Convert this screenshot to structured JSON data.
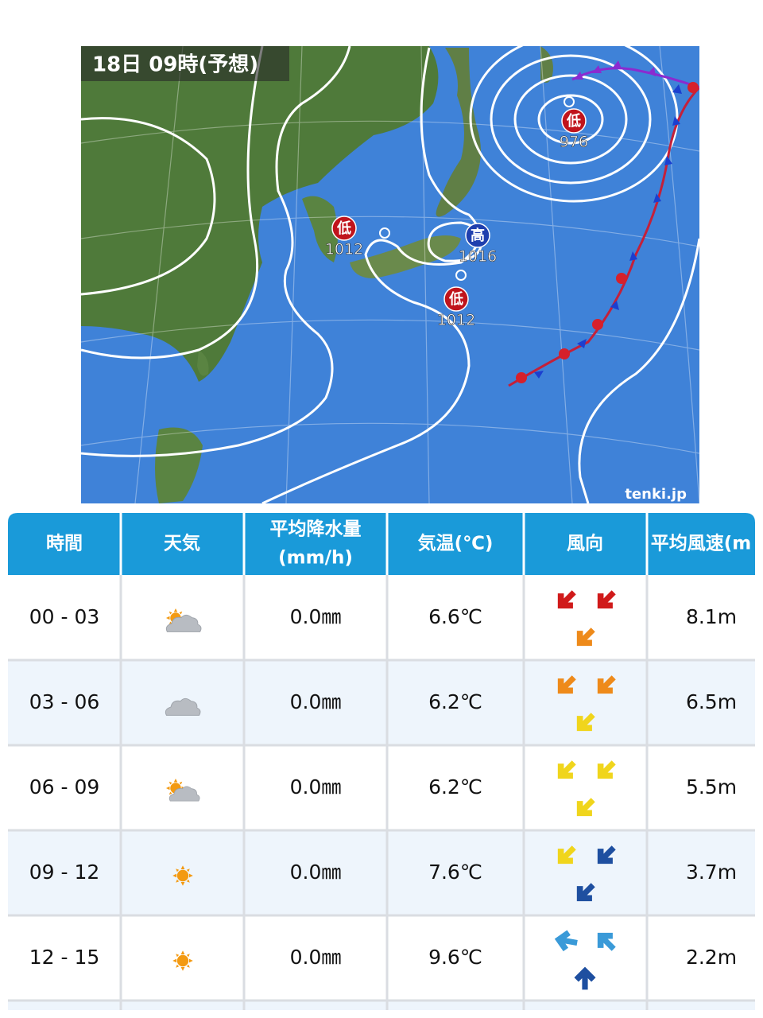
{
  "map": {
    "title": "18日 09時(予想)",
    "pressure_systems": [
      {
        "kind": "低",
        "pressure": "976"
      },
      {
        "kind": "低",
        "pressure": "1012"
      },
      {
        "kind": "高",
        "pressure": "1016"
      },
      {
        "kind": "低",
        "pressure": "1012"
      }
    ],
    "credit": "tenki.jp"
  },
  "table": {
    "headers": [
      [
        "時間"
      ],
      [
        "天気"
      ],
      [
        "平均降水量",
        "(mm/h)"
      ],
      [
        "気温(℃)"
      ],
      [
        "風向"
      ],
      [
        "平均風速(m"
      ]
    ],
    "rows": [
      {
        "time": "00 - 03",
        "precipitation": "0.0㎜",
        "temperature": "6.6℃",
        "wind_speed": "8.1m"
      },
      {
        "time": "03 - 06",
        "precipitation": "0.0㎜",
        "temperature": "6.2℃",
        "wind_speed": "6.5m"
      },
      {
        "time": "06 - 09",
        "precipitation": "0.0㎜",
        "temperature": "6.2℃",
        "wind_speed": "5.5m"
      },
      {
        "time": "09 - 12",
        "precipitation": "0.0㎜",
        "temperature": "7.6℃",
        "wind_speed": "3.7m"
      },
      {
        "time": "12 - 15",
        "precipitation": "0.0㎜",
        "temperature": "9.6℃",
        "wind_speed": "2.2m"
      }
    ]
  }
}
